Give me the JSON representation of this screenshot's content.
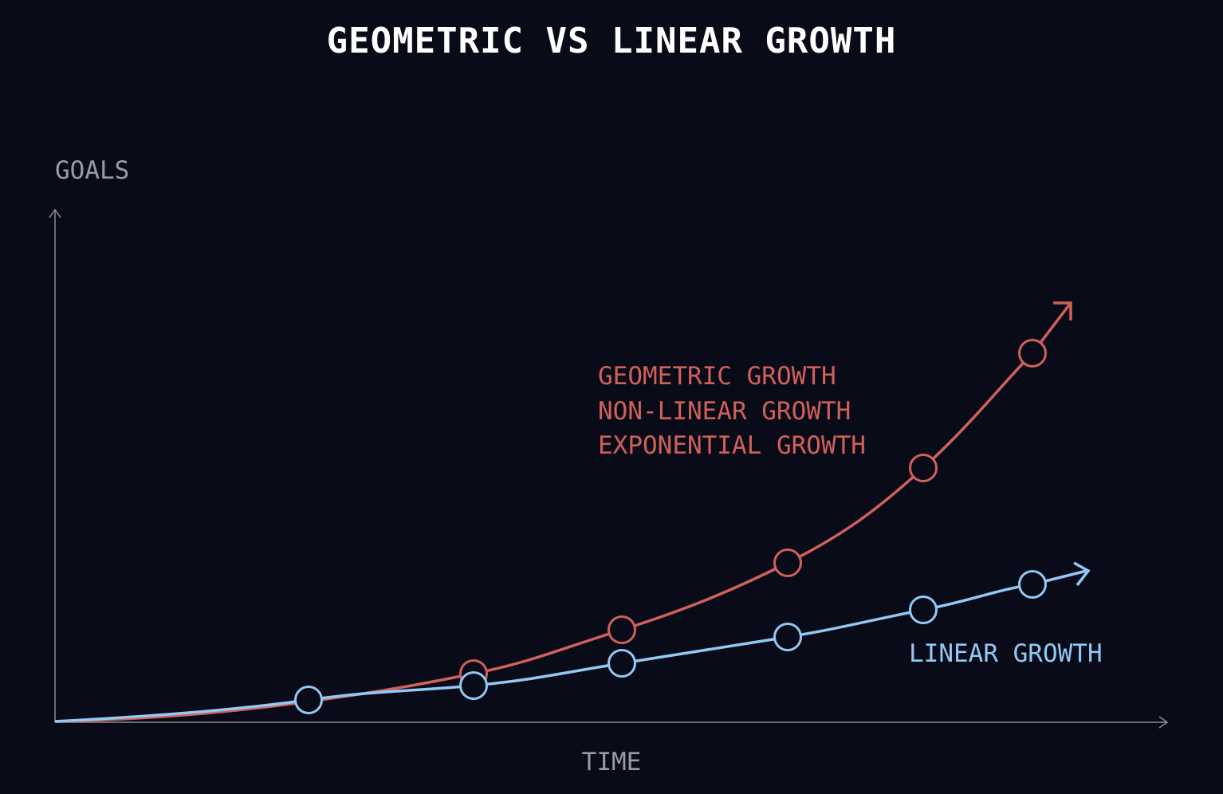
{
  "title": "GEOMETRIC VS LINEAR GROWTH",
  "axes": {
    "y_label": "GOALS",
    "x_label": "TIME"
  },
  "colors": {
    "background": "#0a0b19",
    "geometric": "#d0605a",
    "linear": "#93c8f4",
    "axis": "#8a8b95"
  },
  "series": {
    "geometric": {
      "labels": [
        "GEOMETRIC GROWTH",
        "NON-LINEAR GROWTH",
        "EXPONENTIAL GROWTH"
      ]
    },
    "linear": {
      "label": "LINEAR GROWTH"
    }
  }
}
